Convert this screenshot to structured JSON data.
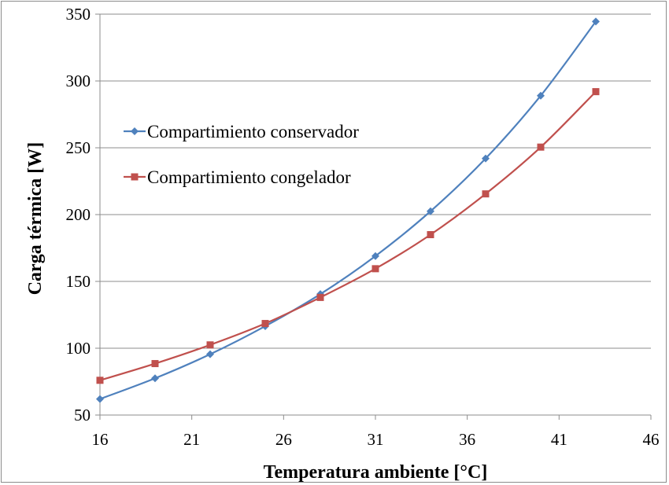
{
  "chart_data": {
    "type": "line",
    "xlabel": "Temperatura ambiente [°C]",
    "ylabel": "Carga térmica [W]",
    "xlim": [
      16,
      46
    ],
    "ylim": [
      50,
      350
    ],
    "x_ticks": [
      "16",
      "21",
      "26",
      "31",
      "36",
      "41",
      "46"
    ],
    "y_ticks": [
      "50",
      "100",
      "150",
      "200",
      "250",
      "300",
      "350"
    ],
    "grid": "horizontal",
    "legend_position": "upper-left",
    "x": [
      16,
      19,
      22,
      25,
      28,
      31,
      34,
      37,
      40,
      43
    ],
    "series": [
      {
        "name": "Compartimiento conservador",
        "color": "#4f81bd",
        "marker": "diamond",
        "values": [
          62,
          77.5,
          95.5,
          116.5,
          140.5,
          169,
          202.5,
          242,
          289,
          344.5
        ]
      },
      {
        "name": "Compartimiento congelador",
        "color": "#c0504d",
        "marker": "square",
        "values": [
          76,
          88.5,
          102.5,
          118.5,
          138,
          159.5,
          185,
          215.5,
          250.5,
          292
        ]
      }
    ]
  }
}
